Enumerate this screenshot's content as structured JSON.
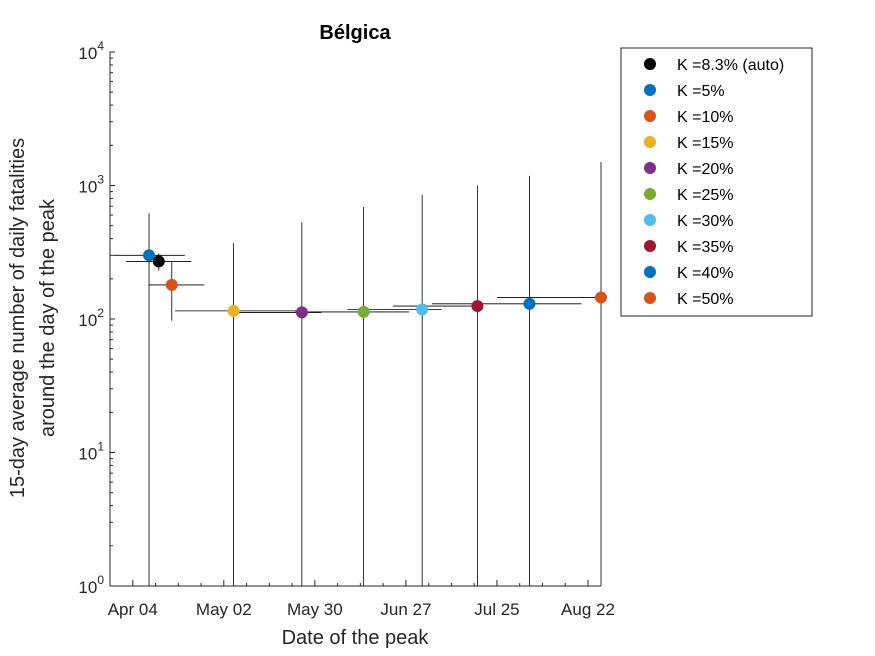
{
  "chart_data": {
    "type": "scatter",
    "title": "Bélgica",
    "xlabel": "Date of the peak",
    "ylabel_lines": [
      "15-day average number of daily fatalities",
      "around the day of the peak"
    ],
    "xscale": "date",
    "yscale": "log",
    "xlim": [
      "2020-03-28",
      "2020-08-26"
    ],
    "ylim": [
      1,
      10000
    ],
    "x_ticks": [
      {
        "date": "2020-04-04",
        "label": "Apr 04"
      },
      {
        "date": "2020-05-02",
        "label": "May 02"
      },
      {
        "date": "2020-05-30",
        "label": "May 30"
      },
      {
        "date": "2020-06-27",
        "label": "Jun 27"
      },
      {
        "date": "2020-07-25",
        "label": "Jul 25"
      },
      {
        "date": "2020-08-22",
        "label": "Aug 22"
      }
    ],
    "y_ticks": [
      {
        "value": 1,
        "base": "10",
        "exp": "0"
      },
      {
        "value": 10,
        "base": "10",
        "exp": "1"
      },
      {
        "value": 100,
        "base": "10",
        "exp": "2"
      },
      {
        "value": 1000,
        "base": "10",
        "exp": "3"
      },
      {
        "value": 10000,
        "base": "10",
        "exp": "4"
      }
    ],
    "grid": false,
    "legend_position": "outside-right-top",
    "series": [
      {
        "name": "K =8.3% (auto)",
        "color": "#000000",
        "x": "2020-04-12",
        "y": 270,
        "x_err": [
          "2020-04-02",
          "2020-04-22"
        ],
        "y_err": [
          230,
          310
        ]
      },
      {
        "name": "K =5%",
        "color": "#0072BD",
        "x": "2020-04-09",
        "y": 300,
        "x_err": [
          "2020-03-29",
          "2020-04-20"
        ],
        "y_err": [
          1,
          620
        ]
      },
      {
        "name": "K =10%",
        "color": "#D95319",
        "x": "2020-04-16",
        "y": 180,
        "x_err": [
          "2020-04-09",
          "2020-04-26"
        ],
        "y_err": [
          97,
          270
        ]
      },
      {
        "name": "K =15%",
        "color": "#EDB120",
        "x": "2020-05-05",
        "y": 115,
        "x_err": [
          "2020-04-17",
          "2020-05-27"
        ],
        "y_err": [
          1,
          370
        ]
      },
      {
        "name": "K =20%",
        "color": "#7E2F8E",
        "x": "2020-05-26",
        "y": 112,
        "x_err": [
          "2020-05-05",
          "2020-06-01"
        ],
        "y_err": [
          1,
          530
        ]
      },
      {
        "name": "K =25%",
        "color": "#77AC30",
        "x": "2020-06-14",
        "y": 113,
        "x_err": [
          "2020-05-24",
          "2020-06-28"
        ],
        "y_err": [
          1,
          690
        ]
      },
      {
        "name": "K =30%",
        "color": "#4DBEEE",
        "x": "2020-07-02",
        "y": 118,
        "x_err": [
          "2020-06-09",
          "2020-07-08"
        ],
        "y_err": [
          1,
          850
        ]
      },
      {
        "name": "K =35%",
        "color": "#A2142F",
        "x": "2020-07-19",
        "y": 125,
        "x_err": [
          "2020-06-23",
          "2020-07-20"
        ],
        "y_err": [
          1,
          1000
        ]
      },
      {
        "name": "K =40%",
        "color": "#0072BD",
        "x": "2020-08-04",
        "y": 130,
        "x_err": [
          "2020-07-05",
          "2020-08-20"
        ],
        "y_err": [
          1,
          1180
        ]
      },
      {
        "name": "K =50%",
        "color": "#D95319",
        "x": "2020-08-31",
        "y": 145,
        "x_err": [
          "2020-07-25",
          "2020-08-31"
        ],
        "y_err": [
          1,
          1500
        ]
      }
    ]
  }
}
